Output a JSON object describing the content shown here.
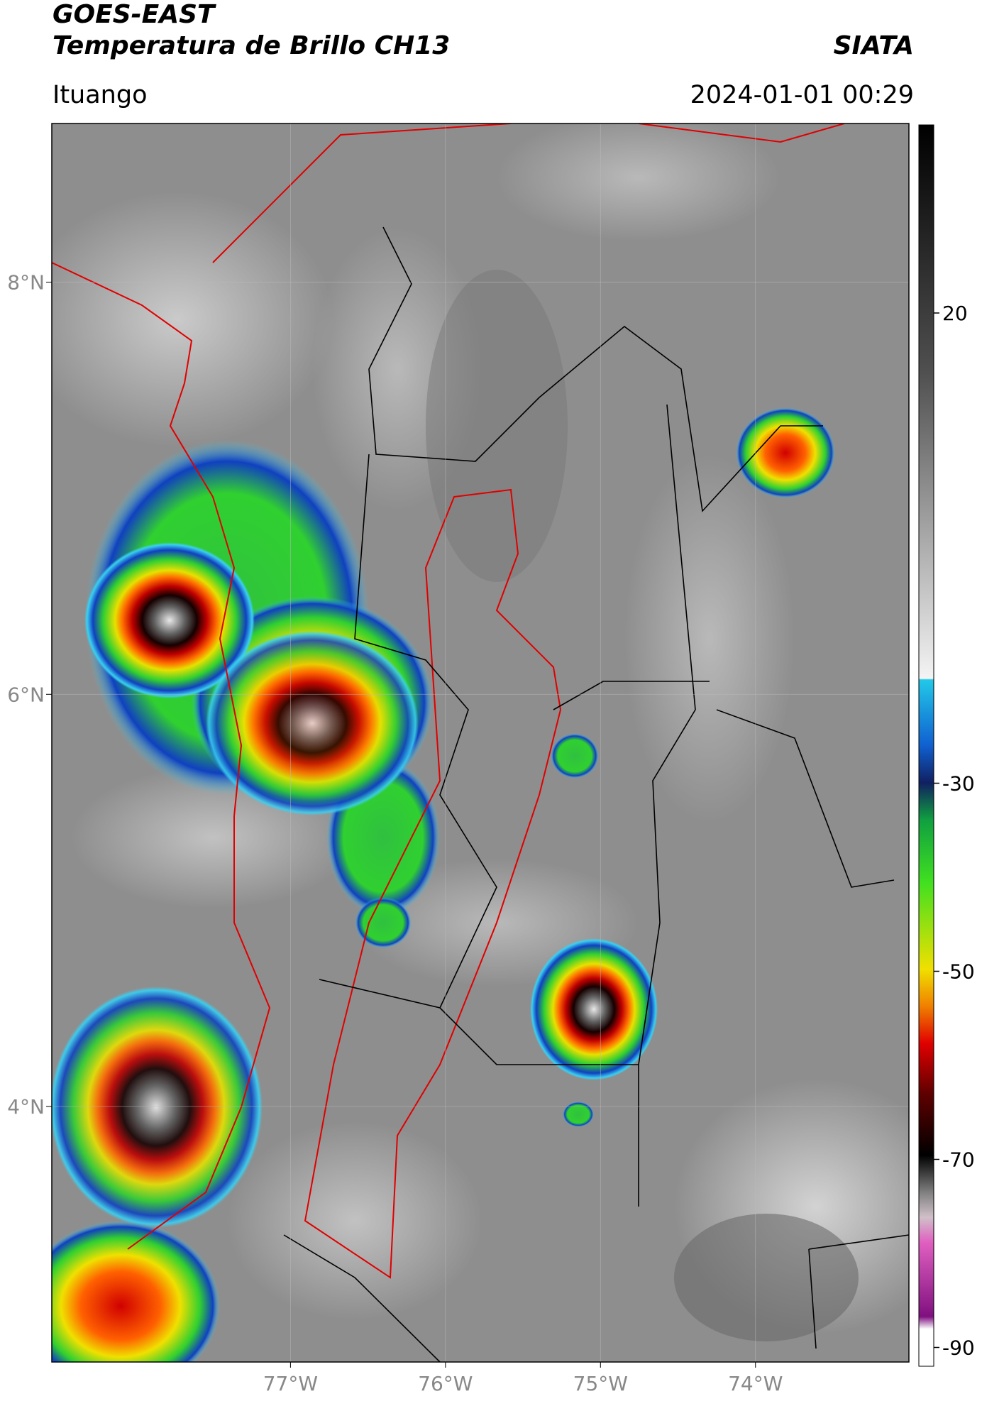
{
  "header": {
    "title": "GOES-EAST",
    "subtitle": "Temperatura de Brillo CH13",
    "agency": "SIATA",
    "location": "Ituango",
    "datetime": "2024-01-01 00:29"
  },
  "map": {
    "lat_range": [
      2.76,
      8.77
    ],
    "lon_range": [
      -78.54,
      -73.01
    ],
    "lat_ticks": [
      {
        "value": 8,
        "label": "8°N"
      },
      {
        "value": 6,
        "label": "6°N"
      },
      {
        "value": 4,
        "label": "4°N"
      }
    ],
    "lon_ticks": [
      {
        "value": -77,
        "label": "77°W"
      },
      {
        "value": -76,
        "label": "76°W"
      },
      {
        "value": -75,
        "label": "75°W"
      },
      {
        "value": -74,
        "label": "74°W"
      }
    ]
  },
  "colorbar": {
    "range": [
      -92,
      40
    ],
    "ticks": [
      20,
      -30,
      -50,
      -70,
      -90
    ]
  }
}
